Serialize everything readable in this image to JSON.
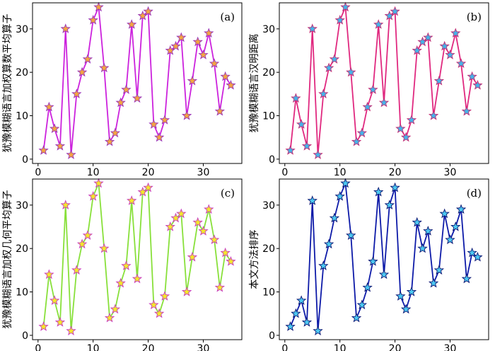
{
  "chart_data": [
    {
      "type": "line",
      "panel_label": "(a)",
      "ylabel": "犹豫模糊语言加权算数平均算子",
      "x": [
        1,
        2,
        3,
        4,
        5,
        6,
        7,
        8,
        9,
        10,
        11,
        12,
        13,
        14,
        15,
        16,
        17,
        18,
        19,
        20,
        21,
        22,
        23,
        24,
        25,
        26,
        27,
        28,
        29,
        30,
        31,
        32,
        33,
        34,
        35
      ],
      "values": [
        2,
        12,
        7,
        3,
        30,
        1,
        15,
        20,
        23,
        32,
        35,
        21,
        4,
        6,
        13,
        16,
        31,
        14,
        33,
        34,
        8,
        5,
        9,
        25,
        26,
        28,
        10,
        18,
        27,
        24,
        29,
        22,
        11,
        19,
        17
      ],
      "xlim": [
        -1,
        37
      ],
      "ylim": [
        -1,
        36
      ],
      "xticks": [
        0,
        10,
        20,
        30
      ],
      "yticks": [
        0,
        10,
        20,
        30
      ],
      "line_color": "#cc22dd",
      "marker": "star",
      "marker_fill": "#f2a640",
      "marker_edge": "#9933bb"
    },
    {
      "type": "line",
      "panel_label": "(b)",
      "ylabel": "犹豫模糊语言汉明距离",
      "x": [
        1,
        2,
        3,
        4,
        5,
        6,
        7,
        8,
        9,
        10,
        11,
        12,
        13,
        14,
        15,
        16,
        17,
        18,
        19,
        20,
        21,
        22,
        23,
        24,
        25,
        26,
        27,
        28,
        29,
        30,
        31,
        32,
        33,
        34,
        35
      ],
      "values": [
        2,
        14,
        8,
        3,
        30,
        1,
        15,
        21,
        23,
        32,
        35,
        20,
        4,
        6,
        12,
        16,
        31,
        13,
        33,
        34,
        7,
        5,
        9,
        25,
        27,
        28,
        10,
        18,
        26,
        24,
        29,
        22,
        11,
        19,
        17
      ],
      "xlim": [
        -1,
        37
      ],
      "ylim": [
        -1,
        36
      ],
      "xticks": [
        0,
        10,
        20,
        30
      ],
      "yticks": [
        0,
        10,
        20,
        30
      ],
      "line_color": "#e0287f",
      "marker": "star",
      "marker_fill": "#44b4e8",
      "marker_edge": "#c42a72"
    },
    {
      "type": "line",
      "panel_label": "(c)",
      "ylabel": "犹豫模糊语言加权几何平均算子",
      "x": [
        1,
        2,
        3,
        4,
        5,
        6,
        7,
        8,
        9,
        10,
        11,
        12,
        13,
        14,
        15,
        16,
        17,
        18,
        19,
        20,
        21,
        22,
        23,
        24,
        25,
        26,
        27,
        28,
        29,
        30,
        31,
        32,
        33,
        34,
        35
      ],
      "values": [
        2,
        14,
        8,
        3,
        30,
        1,
        15,
        21,
        23,
        32,
        35,
        20,
        4,
        6,
        12,
        16,
        31,
        13,
        33,
        34,
        7,
        5,
        9,
        25,
        27,
        28,
        10,
        18,
        26,
        24,
        29,
        22,
        11,
        19,
        17
      ],
      "xlim": [
        -1,
        37
      ],
      "ylim": [
        -1,
        36
      ],
      "xticks": [
        0,
        10,
        20,
        30
      ],
      "yticks": [
        0,
        10,
        20,
        30
      ],
      "line_color": "#88e03a",
      "marker": "star",
      "marker_fill": "#f2e82a",
      "marker_edge": "#c838c0"
    },
    {
      "type": "line",
      "panel_label": "(d)",
      "ylabel": "本文方法排序",
      "x": [
        1,
        2,
        3,
        4,
        5,
        6,
        7,
        8,
        9,
        10,
        11,
        12,
        13,
        14,
        15,
        16,
        17,
        18,
        19,
        20,
        21,
        22,
        23,
        24,
        25,
        26,
        27,
        28,
        29,
        30,
        31,
        32,
        33,
        34,
        35
      ],
      "values": [
        2,
        5,
        8,
        3,
        31,
        1,
        16,
        21,
        27,
        32,
        35,
        23,
        4,
        7,
        11,
        17,
        33,
        14,
        30,
        34,
        9,
        6,
        10,
        26,
        20,
        24,
        12,
        15,
        28,
        22,
        25,
        29,
        13,
        19,
        18
      ],
      "xlim": [
        -1,
        37
      ],
      "ylim": [
        -1,
        36
      ],
      "xticks": [
        0,
        10,
        20,
        30
      ],
      "yticks": [
        0,
        10,
        20,
        30
      ],
      "line_color": "#0d1aa8",
      "marker": "star",
      "marker_fill": "#4cc8f0",
      "marker_edge": "#0a1270"
    }
  ]
}
